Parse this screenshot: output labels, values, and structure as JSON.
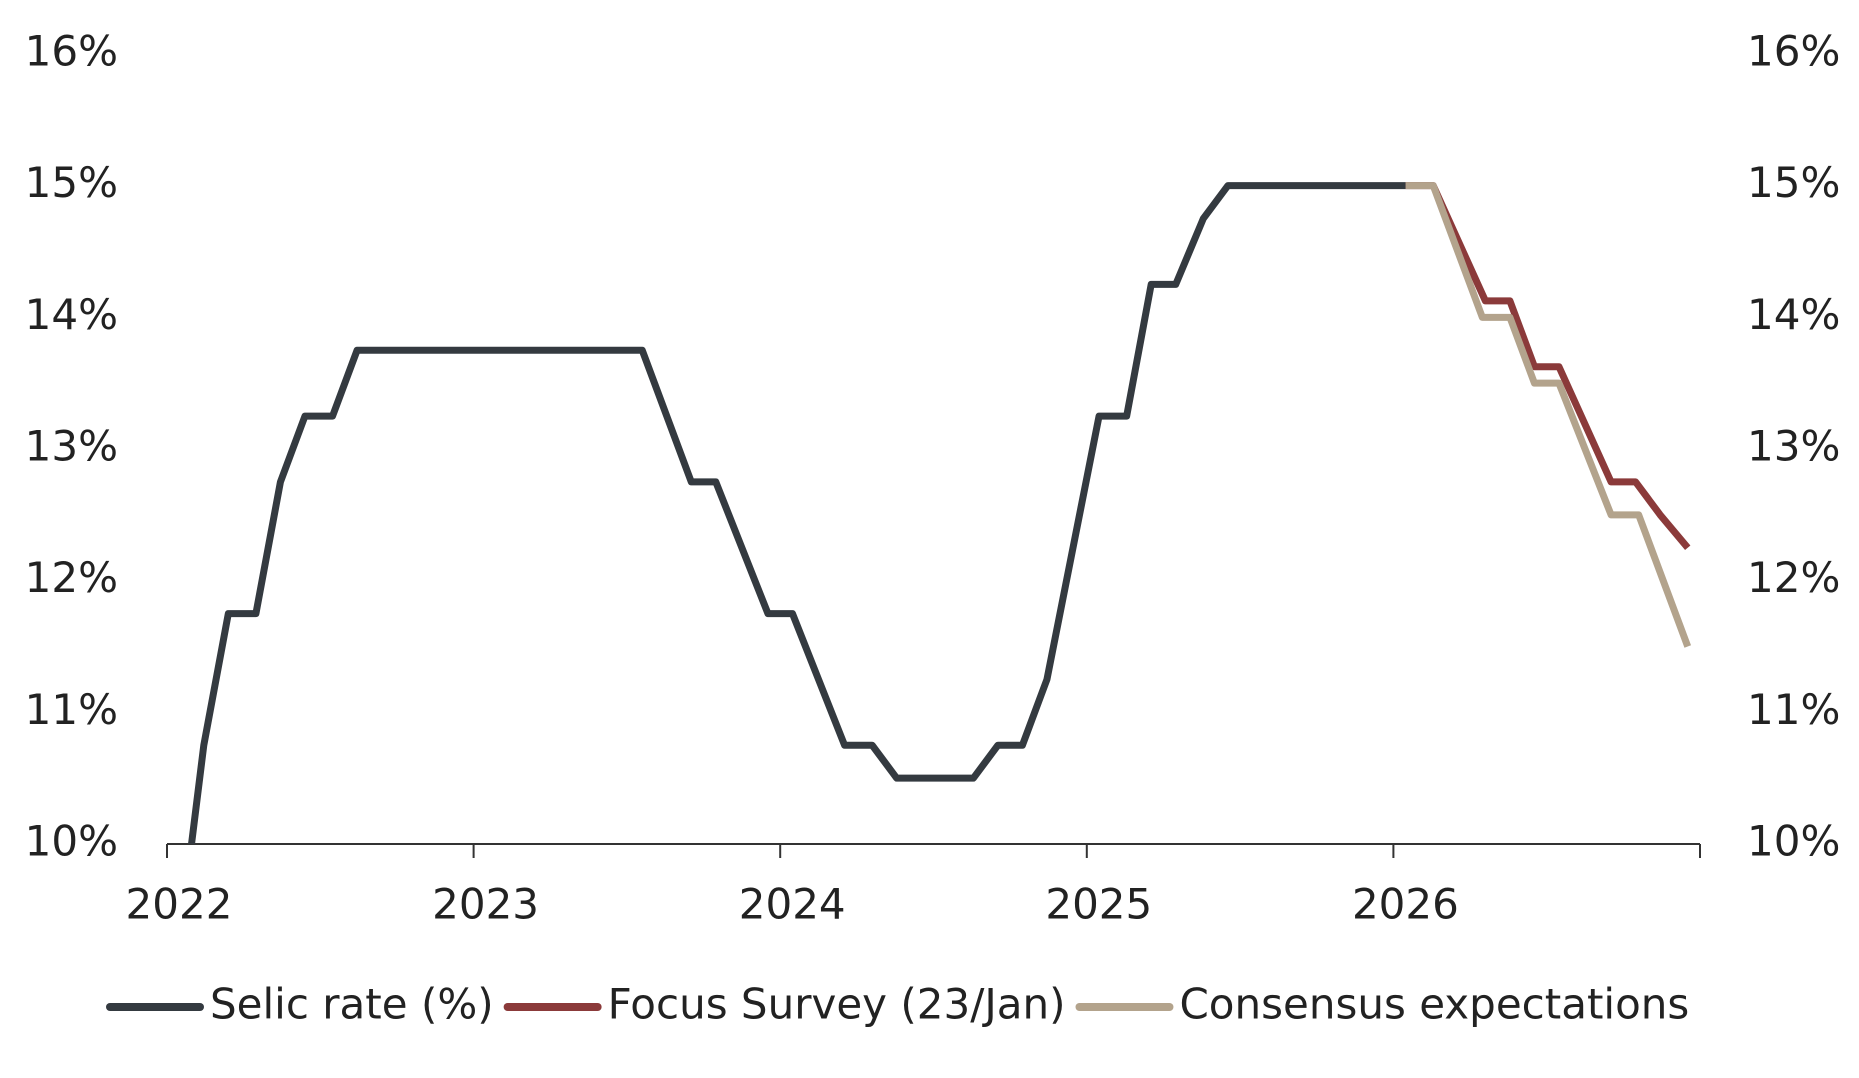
{
  "chart_data": {
    "type": "line",
    "xlim": [
      2022,
      2027
    ],
    "xticks": [
      2022,
      2023,
      2024,
      2025,
      2026
    ],
    "ylim": [
      10,
      16
    ],
    "yticks": [
      {
        "value": 10,
        "label": "10%"
      },
      {
        "value": 11,
        "label": "11%"
      },
      {
        "value": 12,
        "label": "12%"
      },
      {
        "value": 13,
        "label": "13%"
      },
      {
        "value": 14,
        "label": "14%"
      },
      {
        "value": 15,
        "label": "15%"
      },
      {
        "value": 16,
        "label": "16%"
      }
    ],
    "y2lim": [
      10,
      16
    ],
    "y2ticks": [
      {
        "value": 10,
        "label": "10%"
      },
      {
        "value": 11,
        "label": "11%"
      },
      {
        "value": 12,
        "label": "12%"
      },
      {
        "value": 13,
        "label": "13%"
      },
      {
        "value": 14,
        "label": "14%"
      },
      {
        "value": 15,
        "label": "15%"
      },
      {
        "value": 16,
        "label": "16%"
      }
    ],
    "legend": "bottom",
    "series": [
      {
        "name": "Selic rate (%)",
        "color": "#343a40",
        "x": [
          2022.08,
          2022.12,
          2022.2,
          2022.29,
          2022.37,
          2022.45,
          2022.54,
          2022.62,
          2023.55,
          2023.71,
          2023.79,
          2023.96,
          2024.04,
          2024.21,
          2024.3,
          2024.38,
          2024.63,
          2024.71,
          2024.79,
          2024.87,
          2025.04,
          2025.13,
          2025.21,
          2025.29,
          2025.38,
          2025.46,
          2026.04
        ],
        "values": [
          10,
          10.75,
          11.75,
          11.75,
          12.75,
          13.25,
          13.25,
          13.75,
          13.75,
          12.75,
          12.75,
          11.75,
          11.75,
          10.75,
          10.75,
          10.5,
          10.5,
          10.75,
          10.75,
          11.25,
          13.25,
          13.25,
          14.25,
          14.25,
          14.75,
          15,
          15
        ]
      },
      {
        "name": "Focus Survey (23/Jan)",
        "color": "#8b3a3a",
        "x": [
          2026.04,
          2026.13,
          2026.3,
          2026.38,
          2026.46,
          2026.54,
          2026.71,
          2026.79,
          2026.87,
          2026.96
        ],
        "values": [
          15,
          15,
          14.125,
          14.125,
          13.625,
          13.625,
          12.75,
          12.75,
          12.5,
          12.25
        ]
      },
      {
        "name": "Consensus expectations",
        "color": "#b3a38c",
        "x": [
          2026.04,
          2026.13,
          2026.29,
          2026.38,
          2026.46,
          2026.54,
          2026.71,
          2026.8,
          2026.96
        ],
        "values": [
          15,
          15,
          14,
          14,
          13.5,
          13.5,
          12.5,
          12.5,
          11.5
        ]
      }
    ]
  }
}
